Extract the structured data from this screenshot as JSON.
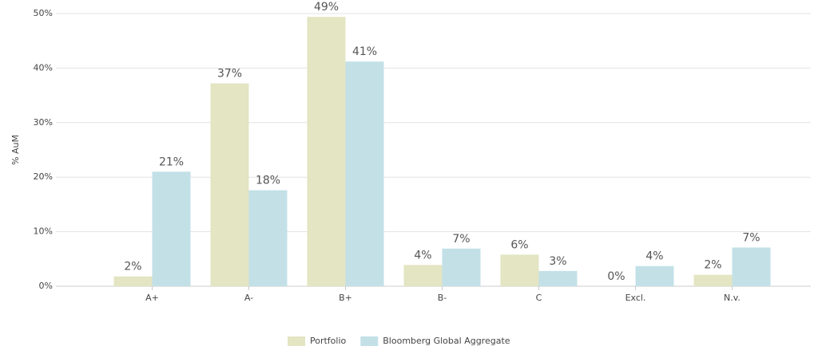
{
  "chart_data": {
    "type": "bar",
    "ylabel": "% AuM",
    "categories": [
      "A+",
      "A-",
      "B+",
      "B-",
      "C",
      "Excl.",
      "N.v."
    ],
    "series": [
      {
        "name": "Portfolio",
        "color": "#e3e5c3",
        "values": [
          1.8,
          37.2,
          49.4,
          3.9,
          5.8,
          0,
          2.1
        ],
        "value_labels": [
          "2%",
          "37%",
          "49%",
          "4%",
          "6%",
          "0%",
          "2%"
        ]
      },
      {
        "name": "Bloomberg Global Aggregate",
        "color": "#c3e0e7",
        "values": [
          21,
          17.6,
          41.2,
          6.9,
          2.8,
          3.7,
          7.1
        ],
        "value_labels": [
          "21%",
          "18%",
          "41%",
          "7%",
          "3%",
          "4%",
          "7%"
        ]
      }
    ],
    "ylim": [
      0,
      50
    ],
    "yticks": [
      {
        "value": 0,
        "label": "0%"
      },
      {
        "value": 10,
        "label": "10%"
      },
      {
        "value": 20,
        "label": "20%"
      },
      {
        "value": 30,
        "label": "30%"
      },
      {
        "value": 40,
        "label": "40%"
      },
      {
        "value": 50,
        "label": "50%"
      }
    ],
    "grid": true,
    "legend": "bottom"
  }
}
